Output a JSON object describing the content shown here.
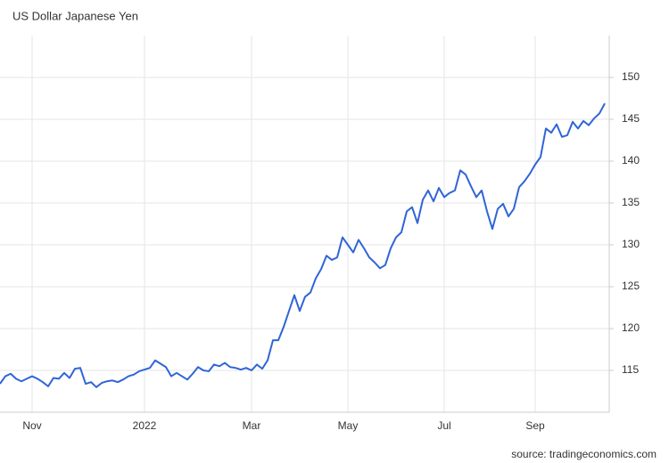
{
  "chart_data": {
    "type": "line",
    "title": "US Dollar Japanese Yen",
    "source": "source: tradingeconomics.com",
    "categories": [
      null,
      null,
      null,
      null,
      null,
      null,
      "Nov",
      null,
      null,
      null,
      null,
      null,
      null,
      null,
      null,
      null,
      null,
      null,
      null,
      null,
      null,
      null,
      null,
      null,
      null,
      null,
      null,
      "2022",
      null,
      null,
      null,
      null,
      null,
      null,
      null,
      null,
      null,
      null,
      null,
      null,
      null,
      null,
      null,
      null,
      null,
      null,
      null,
      "Mar",
      null,
      null,
      null,
      null,
      null,
      null,
      null,
      null,
      null,
      null,
      null,
      null,
      null,
      null,
      null,
      null,
      null,
      "May",
      null,
      null,
      null,
      null,
      null,
      null,
      null,
      null,
      null,
      null,
      null,
      null,
      null,
      null,
      null,
      null,
      null,
      "Jul",
      null,
      null,
      null,
      null,
      null,
      null,
      null,
      null,
      null,
      null,
      null,
      null,
      null,
      null,
      null,
      null,
      "Sep",
      null,
      null,
      null,
      null,
      null,
      null,
      null,
      null,
      null,
      null,
      null,
      null,
      null
    ],
    "values": [
      113.4,
      114.3,
      114.6,
      114.0,
      113.7,
      114.0,
      114.3,
      114.0,
      113.6,
      113.1,
      114.1,
      114.0,
      114.7,
      114.1,
      115.2,
      115.3,
      113.4,
      113.6,
      113.0,
      113.5,
      113.7,
      113.8,
      113.6,
      113.9,
      114.3,
      114.5,
      114.9,
      115.1,
      115.3,
      116.2,
      115.8,
      115.4,
      114.3,
      114.7,
      114.3,
      113.9,
      114.6,
      115.4,
      115.0,
      114.9,
      115.7,
      115.5,
      115.9,
      115.4,
      115.3,
      115.1,
      115.3,
      115.0,
      115.7,
      115.2,
      116.2,
      118.6,
      118.6,
      120.2,
      122.1,
      124.0,
      122.1,
      123.8,
      124.3,
      126.0,
      127.1,
      128.7,
      128.2,
      128.5,
      130.9,
      130.0,
      129.1,
      130.6,
      129.6,
      128.5,
      127.9,
      127.2,
      127.6,
      129.6,
      130.9,
      131.5,
      134.0,
      134.5,
      132.6,
      135.4,
      136.5,
      135.2,
      136.8,
      135.7,
      136.2,
      136.5,
      138.9,
      138.4,
      137.0,
      135.7,
      136.5,
      134.0,
      131.9,
      134.3,
      134.9,
      133.4,
      134.3,
      136.9,
      137.6,
      138.5,
      139.6,
      140.5,
      143.9,
      143.4,
      144.4,
      142.9,
      143.1,
      144.7,
      143.9,
      144.8,
      144.3,
      145.1,
      145.7,
      146.9
    ],
    "color": "#2f65d6",
    "ylim": [
      110,
      155
    ],
    "yticks": [
      115,
      120,
      125,
      130,
      135,
      140,
      145,
      150
    ],
    "grid": true
  }
}
